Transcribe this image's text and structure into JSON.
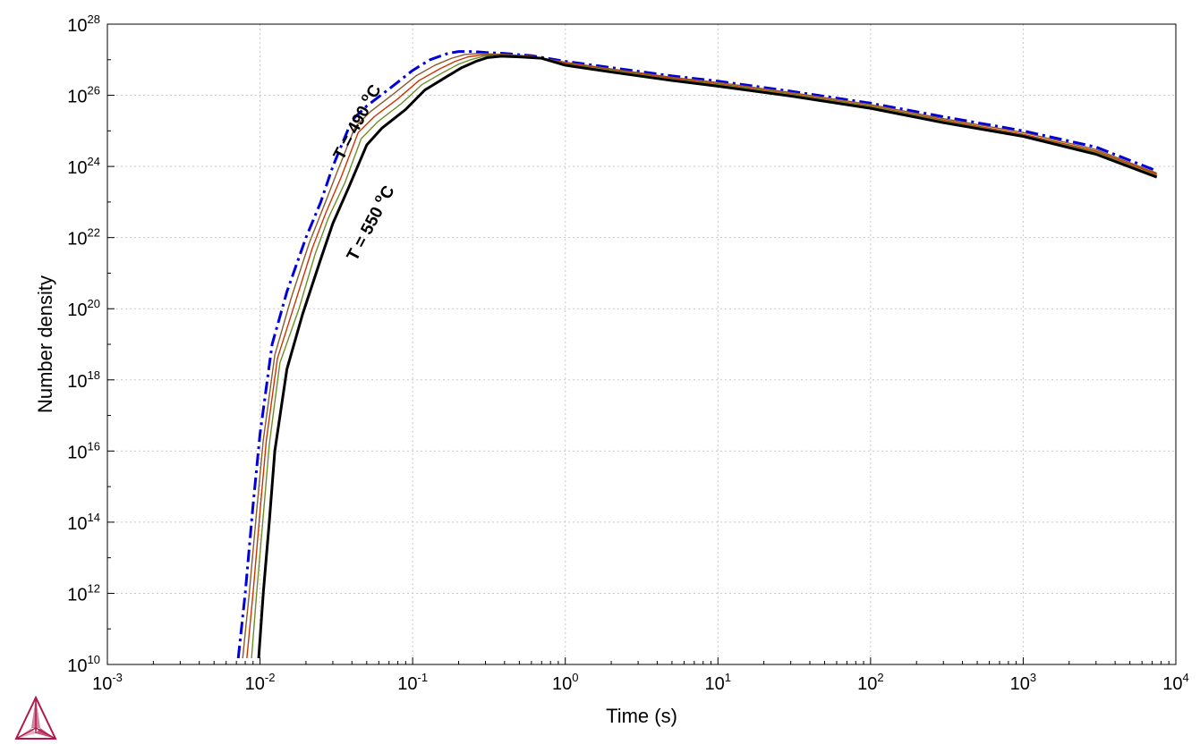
{
  "chart_data": {
    "type": "line",
    "xlabel": "Time (s)",
    "ylabel": "Number density",
    "xscale": "log",
    "yscale": "log",
    "xlim": [
      0.001,
      10000
    ],
    "ylim": [
      10000000000.0,
      1e+28
    ],
    "grid": true,
    "x_ticks": [
      {
        "base": "10",
        "exp": "-3"
      },
      {
        "base": "10",
        "exp": "-2"
      },
      {
        "base": "10",
        "exp": "-1"
      },
      {
        "base": "10",
        "exp": "0"
      },
      {
        "base": "10",
        "exp": "1"
      },
      {
        "base": "10",
        "exp": "2"
      },
      {
        "base": "10",
        "exp": "3"
      },
      {
        "base": "10",
        "exp": "4"
      }
    ],
    "y_ticks": [
      {
        "base": "10",
        "exp": "10"
      },
      {
        "base": "10",
        "exp": "12"
      },
      {
        "base": "10",
        "exp": "14"
      },
      {
        "base": "10",
        "exp": "16"
      },
      {
        "base": "10",
        "exp": "18"
      },
      {
        "base": "10",
        "exp": "20"
      },
      {
        "base": "10",
        "exp": "22"
      },
      {
        "base": "10",
        "exp": "24"
      },
      {
        "base": "10",
        "exp": "26"
      },
      {
        "base": "10",
        "exp": "28"
      }
    ],
    "annotations": [
      {
        "text": "T = 490 ",
        "sup": "o",
        "unit": "C"
      },
      {
        "text": "T = 550 ",
        "sup": "o",
        "unit": "C"
      }
    ],
    "series": [
      {
        "color": "#0000dd",
        "style": "dashdot",
        "x": [
          0.0072,
          0.008,
          0.009,
          0.01,
          0.012,
          0.015,
          0.02,
          0.025,
          0.03,
          0.04,
          0.05,
          0.07,
          0.1,
          0.13,
          0.17,
          0.2,
          0.25,
          0.3,
          0.4,
          0.6,
          1,
          2,
          5,
          10,
          30,
          100,
          300,
          1000,
          3000,
          7500
        ],
        "y": [
          15000000000.0,
          1000000000000.0,
          300000000000000.0,
          3e+16,
          1e+19,
          3e+20,
          1e+22,
          1e+23,
          1e+24,
          2e+25,
          5e+25,
          1.5e+26,
          5e+26,
          1e+27,
          1.5e+27,
          1.7e+27,
          1.7e+27,
          1.6e+27,
          1.5e+27,
          1.3e+27,
          9e+26,
          6e+26,
          3.5e+26,
          2.5e+26,
          1.3e+26,
          6e+25,
          2.5e+25,
          1e+25,
          3.5e+24,
          7.5e+23
        ]
      },
      {
        "color": "#8b5a2b",
        "style": "solid",
        "x": [
          0.0077,
          0.0085,
          0.0095,
          0.0105,
          0.0125,
          0.016,
          0.021,
          0.026,
          0.032,
          0.042,
          0.053,
          0.075,
          0.105,
          0.14,
          0.18,
          0.22,
          0.27,
          0.32,
          0.42,
          0.6,
          1,
          2,
          5,
          10,
          30,
          100,
          300,
          1000,
          3000,
          7500
        ],
        "y": [
          15000000000.0,
          1000000000000.0,
          200000000000000.0,
          2e+16,
          5e+18,
          2e+20,
          7e+21,
          7e+22,
          7e+23,
          1.3e+25,
          3.5e+25,
          1.1e+26,
          3.5e+26,
          7e+26,
          1.1e+27,
          1.4e+27,
          1.5e+27,
          1.45e+27,
          1.4e+27,
          1.25e+27,
          8.5e+26,
          5.5e+26,
          3.2e+26,
          2.3e+26,
          1.2e+26,
          5.5e+25,
          2.2e+25,
          9e+24,
          3e+24,
          6.5e+23
        ]
      },
      {
        "color": "#cc3300",
        "style": "solid",
        "x": [
          0.0082,
          0.009,
          0.01,
          0.011,
          0.013,
          0.017,
          0.022,
          0.027,
          0.034,
          0.044,
          0.056,
          0.08,
          0.11,
          0.15,
          0.19,
          0.23,
          0.28,
          0.34,
          0.44,
          0.62,
          1,
          2,
          5,
          10,
          30,
          100,
          300,
          1000,
          3000,
          7500
        ],
        "y": [
          15000000000.0,
          1000000000000.0,
          200000000000000.0,
          2e+16,
          4e+18,
          1.5e+20,
          5e+21,
          5e+22,
          5e+23,
          9e+24,
          2.5e+25,
          8e+25,
          2.6e+26,
          5.5e+26,
          9e+26,
          1.2e+27,
          1.35e+27,
          1.35e+27,
          1.3e+27,
          1.2e+27,
          8e+26,
          5.2e+26,
          3e+26,
          2.1e+26,
          1.1e+26,
          5e+25,
          2e+25,
          8e+24,
          2.7e+24,
          6e+23
        ]
      },
      {
        "color": "#6b8e23",
        "style": "solid",
        "x": [
          0.0088,
          0.0095,
          0.0105,
          0.0115,
          0.0135,
          0.018,
          0.023,
          0.028,
          0.036,
          0.046,
          0.059,
          0.085,
          0.115,
          0.16,
          0.2,
          0.24,
          0.29,
          0.36,
          0.46,
          0.65,
          1,
          2,
          5,
          10,
          30,
          100,
          300,
          1000,
          3000,
          7500
        ],
        "y": [
          15000000000.0,
          1000000000000.0,
          150000000000000.0,
          1.5e+16,
          3e+18,
          1e+20,
          3.5e+21,
          3.5e+22,
          3.5e+23,
          6e+24,
          1.8e+25,
          6e+25,
          2e+26,
          4.5e+26,
          7.5e+26,
          1e+27,
          1.25e+27,
          1.3e+27,
          1.25e+27,
          1.15e+27,
          7.5e+26,
          5e+26,
          2.8e+26,
          2e+26,
          1.05e+26,
          4.8e+25,
          1.9e+25,
          7.5e+24,
          2.5e+24,
          5.5e+23
        ]
      },
      {
        "color": "#000000",
        "style": "solid-thick",
        "x": [
          0.0098,
          0.0105,
          0.0115,
          0.0125,
          0.015,
          0.019,
          0.025,
          0.03,
          0.038,
          0.05,
          0.063,
          0.09,
          0.12,
          0.17,
          0.21,
          0.26,
          0.31,
          0.38,
          0.5,
          0.7,
          1,
          2,
          5,
          10,
          30,
          100,
          300,
          1000,
          3000,
          7500
        ],
        "y": [
          15000000000.0,
          1000000000000.0,
          100000000000000.0,
          1e+16,
          2e+18,
          7e+19,
          2.5e+21,
          2.5e+22,
          2.5e+23,
          4e+24,
          1.2e+25,
          4e+25,
          1.4e+26,
          3.5e+26,
          6e+26,
          9e+26,
          1.15e+27,
          1.25e+27,
          1.2e+27,
          1.1e+27,
          7e+26,
          4.5e+26,
          2.6e+26,
          1.8e+26,
          9.5e+25,
          4.3e+25,
          1.7e+25,
          7e+24,
          2.2e+24,
          5e+23
        ]
      }
    ]
  }
}
